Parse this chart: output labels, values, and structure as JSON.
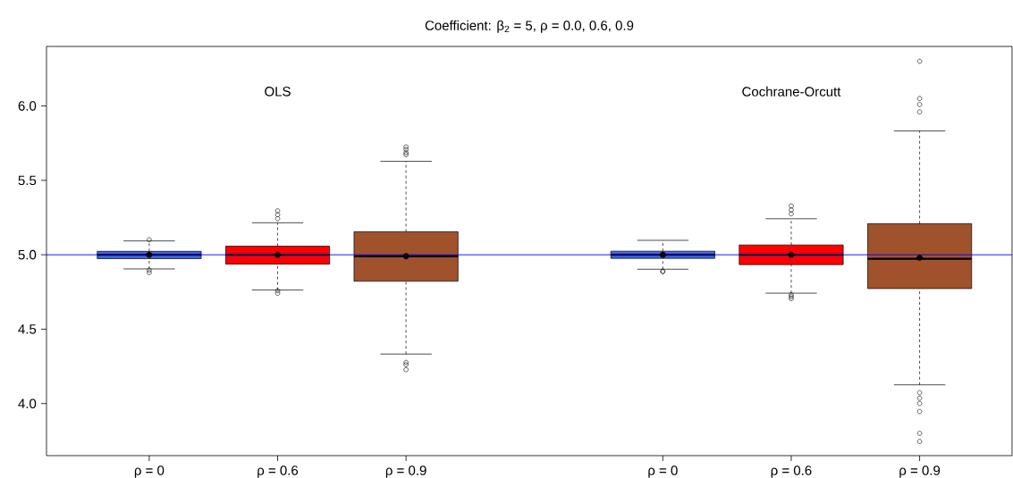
{
  "chart_data": {
    "type": "box",
    "title": "Coefficient: β$_{2}$ = 5, ρ = 0.0, 0.6, 0.9",
    "categories": [
      "ρ = 0",
      "ρ = 0.6",
      "ρ = 0.9",
      null,
      "ρ = 0",
      "ρ = 0.6",
      "ρ = 0.9"
    ],
    "colors": [
      "#4169e1",
      "#ff0000",
      "#a0522d",
      null,
      "#4169e1",
      "#ff0000",
      "#a0522d"
    ],
    "boxes": [
      {
        "low": 4.905,
        "q1": 4.974,
        "median": 5.0,
        "q3": 5.023,
        "high": 5.093,
        "mean": 5.0,
        "outliers": [
          5.101,
          4.897,
          4.88
        ]
      },
      {
        "low": 4.763,
        "q1": 4.937,
        "median": 5.0,
        "q3": 5.058,
        "high": 5.215,
        "mean": 5.0,
        "outliers": [
          5.295,
          5.269,
          5.243,
          4.759,
          4.741
        ]
      },
      {
        "low": 4.333,
        "q1": 4.822,
        "median": 4.99,
        "q3": 5.155,
        "high": 5.628,
        "mean": 4.99,
        "outliers": [
          5.725,
          5.708,
          5.686,
          5.673,
          4.277,
          4.262,
          4.228
        ]
      },
      null,
      {
        "low": 4.903,
        "q1": 4.976,
        "median": 5.0,
        "q3": 5.024,
        "high": 5.097,
        "mean": 5.0,
        "outliers": [
          4.89,
          4.886
        ]
      },
      {
        "low": 4.742,
        "q1": 4.934,
        "median": 5.0,
        "q3": 5.066,
        "high": 5.242,
        "mean": 5.0,
        "outliers": [
          5.328,
          5.301,
          5.275,
          4.731,
          4.718,
          4.705
        ]
      },
      {
        "low": 4.126,
        "q1": 4.773,
        "median": 4.973,
        "q3": 5.209,
        "high": 5.832,
        "mean": 4.98,
        "outliers": [
          6.3,
          6.05,
          6.01,
          5.96,
          4.073,
          4.036,
          4.0,
          3.946,
          3.8,
          3.745
        ]
      }
    ],
    "ylim": [
      3.65,
      6.4
    ],
    "yticks": [
      {
        "value": 4,
        "label": "4.0"
      },
      {
        "value": 4.5,
        "label": "4.5"
      },
      {
        "value": 5,
        "label": "5.0"
      },
      {
        "value": 5.5,
        "label": "5.5"
      },
      {
        "value": 6,
        "label": "6.0"
      }
    ],
    "ref_lines": [
      {
        "axis": "y",
        "value": 5,
        "color": "#0000ff"
      }
    ],
    "annotations": [
      "OLS",
      "Cochrane-Orcutt"
    ]
  }
}
